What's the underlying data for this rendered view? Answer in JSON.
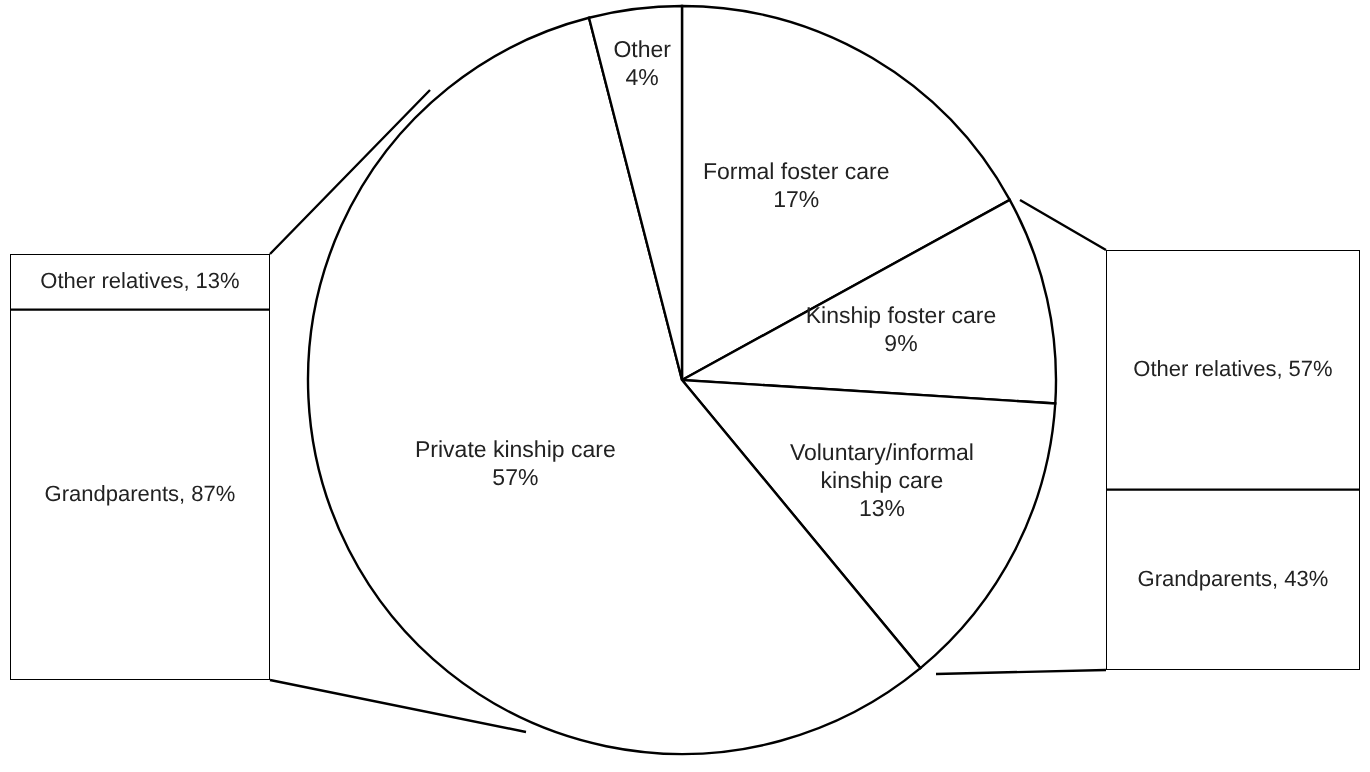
{
  "chart_data": [
    {
      "type": "bar",
      "stacked": true,
      "categories": [
        null
      ],
      "series": [
        {
          "color": "#ffffff",
          "values": [
            87
          ],
          "value_labels": [
            "Grandparents, 87%"
          ]
        },
        {
          "color": "#ffffff",
          "values": [
            13
          ],
          "value_labels": [
            "Other relatives, 13%"
          ]
        }
      ]
    },
    {
      "type": "pie",
      "categories": [
        "Formal foster care",
        "Kinship foster care",
        "Voluntary/informal kinship care",
        "Private kinship care",
        "Other"
      ],
      "values": [
        17,
        9,
        13,
        57,
        4
      ],
      "value_labels": [
        "17%",
        "9%",
        "13%",
        "57%",
        "4%"
      ],
      "colors": [
        "#ffffff",
        "#ffffff",
        "#ffffff",
        "#ffffff",
        "#ffffff"
      ]
    },
    {
      "type": "bar",
      "stacked": true,
      "categories": [
        null
      ],
      "series": [
        {
          "color": "#ffffff",
          "values": [
            43
          ],
          "value_labels": [
            "Grandparents, 43%"
          ]
        },
        {
          "color": "#ffffff",
          "values": [
            57
          ],
          "value_labels": [
            "Other relatives, 57%"
          ]
        }
      ]
    }
  ]
}
